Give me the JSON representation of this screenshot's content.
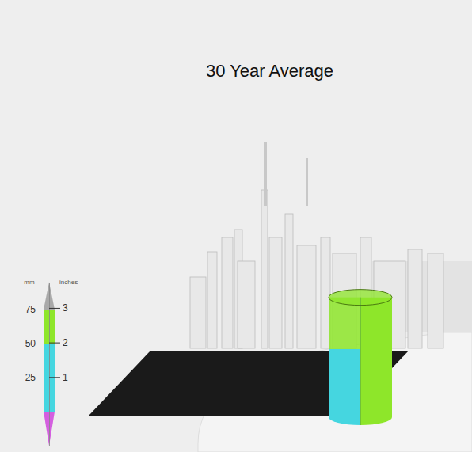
{
  "chart_data": {
    "type": "bar",
    "title": "30 Year Average",
    "values": [
      88
    ],
    "colors": [
      "#45d6e0",
      "#8ee62a"
    ],
    "y_label": "mm",
    "y2_label": "inches",
    "ylim": [
      -25,
      95
    ],
    "yticks": [
      25,
      50,
      75
    ],
    "y2lim": [
      -0.984,
      3.74
    ],
    "y2ticks": [
      1,
      2,
      3
    ],
    "color_bar": {
      "bounds": [
        -25,
        0,
        50,
        75,
        95
      ],
      "colors": [
        "#d45fe0",
        "#45d6e0",
        "#8ee62a",
        "#a9a9a9"
      ]
    }
  }
}
